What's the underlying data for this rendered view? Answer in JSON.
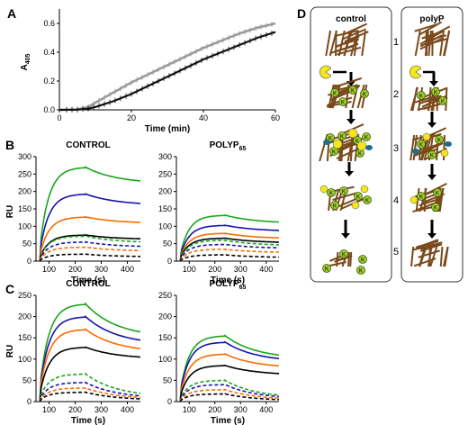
{
  "panel_labels": {
    "A": "A",
    "B": "B",
    "C": "C",
    "D": "D"
  },
  "colors": {
    "series_light": "#9a9a9a",
    "series_dark": "#111111",
    "green": "#1aa61a",
    "blue": "#1414b0",
    "orange": "#ff6a00",
    "black": "#000000",
    "fibrin": "#7a4a1c",
    "enzyme": "#f5e61e",
    "plasmin_k": "#9ecb2e",
    "polyp_teal": "#1b6f8f"
  },
  "chart_data": [
    {
      "id": "A",
      "type": "line",
      "ylabel": "A",
      "ylabel_sub": "405",
      "xlabel": "Time (min)",
      "xlim": [
        0,
        60
      ],
      "ylim": [
        0,
        0.7
      ],
      "xticks": [
        0,
        20,
        40,
        60
      ],
      "yticks": [
        0.0,
        0.2,
        0.4,
        0.6
      ],
      "ytick_labels": [
        "0.0",
        "0.2",
        "0.4",
        "0.6"
      ],
      "series": [
        {
          "color": "#9a9a9a",
          "x": [
            0,
            5,
            8,
            10,
            15,
            20,
            25,
            30,
            35,
            40,
            45,
            50,
            55,
            60
          ],
          "y": [
            0,
            0.003,
            0.02,
            0.05,
            0.12,
            0.19,
            0.25,
            0.31,
            0.37,
            0.43,
            0.48,
            0.53,
            0.57,
            0.6
          ]
        },
        {
          "color": "#111111",
          "x": [
            0,
            5,
            8,
            10,
            15,
            20,
            25,
            30,
            35,
            40,
            45,
            50,
            55,
            60
          ],
          "y": [
            0,
            0.001,
            0.008,
            0.02,
            0.06,
            0.11,
            0.17,
            0.23,
            0.29,
            0.35,
            0.4,
            0.45,
            0.5,
            0.54
          ]
        }
      ]
    },
    {
      "id": "B1",
      "type": "line",
      "title": "CONTROL",
      "ylabel": "RU",
      "xlabel": "Time (s)",
      "xlim": [
        50,
        450
      ],
      "ylim": [
        0,
        300
      ],
      "xticks": [
        100,
        200,
        300,
        400
      ],
      "yticks": [
        0,
        50,
        100,
        150,
        200,
        250,
        300
      ],
      "series": [
        {
          "color": "#1aa61a",
          "dash": false,
          "rmax": 270,
          "rend": 222
        },
        {
          "color": "#1414b0",
          "dash": false,
          "rmax": 193,
          "rend": 160
        },
        {
          "color": "#ff6a00",
          "dash": false,
          "rmax": 127,
          "rend": 108
        },
        {
          "color": "#000000",
          "dash": false,
          "rmax": 75,
          "rend": 62
        },
        {
          "color": "#1aa61a",
          "dash": true,
          "rmax": 72,
          "rend": 52
        },
        {
          "color": "#1414b0",
          "dash": true,
          "rmax": 55,
          "rend": 40
        },
        {
          "color": "#ff6a00",
          "dash": true,
          "rmax": 40,
          "rend": 28
        },
        {
          "color": "#000000",
          "dash": true,
          "rmax": 20,
          "rend": 12
        }
      ]
    },
    {
      "id": "B2",
      "type": "line",
      "title": "POLYP",
      "title_sub": "65",
      "xlabel": "Time (s)",
      "xlim": [
        50,
        450
      ],
      "ylim": [
        0,
        300
      ],
      "xticks": [
        100,
        200,
        300,
        400
      ],
      "yticks": [
        0,
        50,
        100,
        150,
        200,
        250,
        300
      ],
      "series": [
        {
          "color": "#1aa61a",
          "dash": false,
          "rmax": 132,
          "rend": 108
        },
        {
          "color": "#1414b0",
          "dash": false,
          "rmax": 103,
          "rend": 85
        },
        {
          "color": "#ff6a00",
          "dash": false,
          "rmax": 80,
          "rend": 64
        },
        {
          "color": "#000000",
          "dash": false,
          "rmax": 66,
          "rend": 52
        },
        {
          "color": "#1aa61a",
          "dash": true,
          "rmax": 60,
          "rend": 44
        },
        {
          "color": "#1414b0",
          "dash": true,
          "rmax": 48,
          "rend": 36
        },
        {
          "color": "#ff6a00",
          "dash": true,
          "rmax": 34,
          "rend": 24
        },
        {
          "color": "#000000",
          "dash": true,
          "rmax": 18,
          "rend": 10
        }
      ]
    },
    {
      "id": "C1",
      "type": "line",
      "title": "CONTROL",
      "ylabel": "RU",
      "xlabel": "Time (s)",
      "xlim": [
        50,
        450
      ],
      "ylim": [
        0,
        250
      ],
      "xticks": [
        100,
        200,
        300,
        400
      ],
      "yticks": [
        0,
        50,
        100,
        150,
        200,
        250
      ],
      "series": [
        {
          "color": "#1aa61a",
          "dash": false,
          "rmax": 230,
          "rend": 150
        },
        {
          "color": "#1414b0",
          "dash": false,
          "rmax": 200,
          "rend": 133
        },
        {
          "color": "#ff6a00",
          "dash": false,
          "rmax": 170,
          "rend": 115
        },
        {
          "color": "#000000",
          "dash": false,
          "rmax": 128,
          "rend": 100
        },
        {
          "color": "#1aa61a",
          "dash": true,
          "rmax": 65,
          "rend": 10
        },
        {
          "color": "#1414b0",
          "dash": true,
          "rmax": 45,
          "rend": 7
        },
        {
          "color": "#ff6a00",
          "dash": true,
          "rmax": 32,
          "rend": 5
        },
        {
          "color": "#000000",
          "dash": true,
          "rmax": 22,
          "rend": 3
        }
      ]
    },
    {
      "id": "C2",
      "type": "line",
      "title": "POLYP",
      "title_sub": "65",
      "xlabel": "Time (s)",
      "xlim": [
        50,
        450
      ],
      "ylim": [
        0,
        250
      ],
      "xticks": [
        100,
        200,
        300,
        400
      ],
      "yticks": [
        0,
        50,
        100,
        150,
        200,
        250
      ],
      "series": [
        {
          "color": "#1aa61a",
          "dash": false,
          "rmax": 155,
          "rend": 100
        },
        {
          "color": "#1414b0",
          "dash": false,
          "rmax": 140,
          "rend": 93
        },
        {
          "color": "#ff6a00",
          "dash": false,
          "rmax": 112,
          "rend": 78
        },
        {
          "color": "#000000",
          "dash": false,
          "rmax": 85,
          "rend": 62
        },
        {
          "color": "#1aa61a",
          "dash": true,
          "rmax": 50,
          "rend": 8
        },
        {
          "color": "#1414b0",
          "dash": true,
          "rmax": 40,
          "rend": 6
        },
        {
          "color": "#ff6a00",
          "dash": true,
          "rmax": 28,
          "rend": 4
        },
        {
          "color": "#000000",
          "dash": true,
          "rmax": 18,
          "rend": 2
        }
      ]
    }
  ],
  "diagram": {
    "control_title": "control",
    "polyp_title": "polyP",
    "steps": [
      "1",
      "2",
      "3",
      "4",
      "5"
    ],
    "marker_letter": "K"
  }
}
